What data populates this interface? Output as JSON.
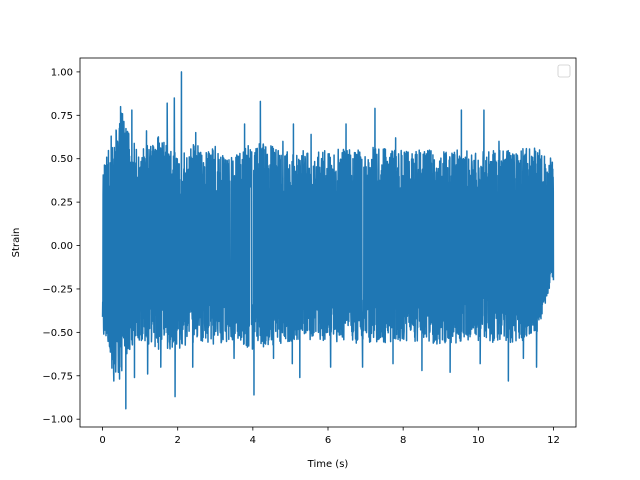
{
  "chart_data": {
    "type": "line",
    "title": "",
    "xlabel": "Time (s)",
    "ylabel": "Strain",
    "xlim": [
      -0.6,
      12.6
    ],
    "ylim": [
      -1.045,
      1.08
    ],
    "x_ticks": [
      0,
      2,
      4,
      6,
      8,
      10,
      12
    ],
    "x_tick_labels": [
      "0",
      "2",
      "4",
      "6",
      "8",
      "10",
      "12"
    ],
    "y_ticks": [
      -1.0,
      -0.75,
      -0.5,
      -0.25,
      0.0,
      0.25,
      0.5,
      0.75,
      1.0
    ],
    "y_tick_labels": [
      "−1.00",
      "−0.75",
      "−0.50",
      "−0.25",
      "0.00",
      "0.25",
      "0.50",
      "0.75",
      "1.00"
    ],
    "grid": false,
    "legend": {
      "placement": "top-right",
      "entries": []
    },
    "series_color": "#1f77b4",
    "series": [
      {
        "x_start": 0.0,
        "x_end": 12.0,
        "envelope_x": [
          0.0,
          0.1,
          0.25,
          0.5,
          0.75,
          1.0,
          1.5,
          2.0,
          2.5,
          3.0,
          3.5,
          4.0,
          5.0,
          6.0,
          7.0,
          8.0,
          9.0,
          10.0,
          11.0,
          11.5,
          12.0
        ],
        "envelope_high": [
          0.43,
          0.53,
          0.6,
          0.78,
          0.62,
          0.55,
          0.63,
          0.52,
          0.6,
          0.55,
          0.52,
          0.6,
          0.55,
          0.55,
          0.57,
          0.55,
          0.55,
          0.55,
          0.55,
          0.57,
          0.5
        ],
        "envelope_low": [
          -0.57,
          -0.52,
          -0.72,
          -0.8,
          -0.58,
          -0.55,
          -0.6,
          -0.6,
          -0.55,
          -0.57,
          -0.55,
          -0.6,
          -0.55,
          -0.55,
          -0.57,
          -0.55,
          -0.57,
          -0.55,
          -0.57,
          -0.55,
          -0.17
        ],
        "peaks": [
          {
            "x": 0.23,
            "y": 0.63
          },
          {
            "x": 0.48,
            "y": 0.8
          },
          {
            "x": 0.78,
            "y": 0.78
          },
          {
            "x": 1.17,
            "y": 0.66
          },
          {
            "x": 1.47,
            "y": 0.62
          },
          {
            "x": 1.72,
            "y": 0.82
          },
          {
            "x": 1.91,
            "y": 0.85
          },
          {
            "x": 2.1,
            "y": 1.0
          },
          {
            "x": 2.48,
            "y": 0.65
          },
          {
            "x": 3.0,
            "y": 0.57
          },
          {
            "x": 3.78,
            "y": 0.7
          },
          {
            "x": 4.2,
            "y": 0.83
          },
          {
            "x": 4.8,
            "y": 0.6
          },
          {
            "x": 5.08,
            "y": 0.7
          },
          {
            "x": 5.55,
            "y": 0.64
          },
          {
            "x": 6.48,
            "y": 0.7
          },
          {
            "x": 7.25,
            "y": 0.79
          },
          {
            "x": 7.8,
            "y": 0.62
          },
          {
            "x": 8.5,
            "y": 0.84
          },
          {
            "x": 9.55,
            "y": 0.78
          },
          {
            "x": 10.15,
            "y": 0.78
          },
          {
            "x": 10.55,
            "y": 0.6
          },
          {
            "x": 11.2,
            "y": 0.86
          },
          {
            "x": 11.63,
            "y": 0.55
          },
          {
            "x": 11.97,
            "y": 0.48
          }
        ],
        "troughs": [
          {
            "x": 0.3,
            "y": -0.78
          },
          {
            "x": 0.42,
            "y": -0.73
          },
          {
            "x": 0.62,
            "y": -0.94
          },
          {
            "x": 0.85,
            "y": -0.76
          },
          {
            "x": 1.2,
            "y": -0.74
          },
          {
            "x": 1.55,
            "y": -0.7
          },
          {
            "x": 1.93,
            "y": -0.87
          },
          {
            "x": 2.4,
            "y": -0.7
          },
          {
            "x": 3.5,
            "y": -0.65
          },
          {
            "x": 4.03,
            "y": -0.86
          },
          {
            "x": 4.55,
            "y": -0.65
          },
          {
            "x": 5.05,
            "y": -0.68
          },
          {
            "x": 5.25,
            "y": -0.76
          },
          {
            "x": 6.07,
            "y": -0.7
          },
          {
            "x": 6.92,
            "y": -0.7
          },
          {
            "x": 7.73,
            "y": -0.68
          },
          {
            "x": 8.5,
            "y": -0.72
          },
          {
            "x": 9.25,
            "y": -0.73
          },
          {
            "x": 10.05,
            "y": -0.68
          },
          {
            "x": 10.8,
            "y": -0.78
          },
          {
            "x": 11.2,
            "y": -0.65
          },
          {
            "x": 11.55,
            "y": -0.7
          },
          {
            "x": 12.0,
            "y": -0.2
          }
        ]
      }
    ]
  }
}
